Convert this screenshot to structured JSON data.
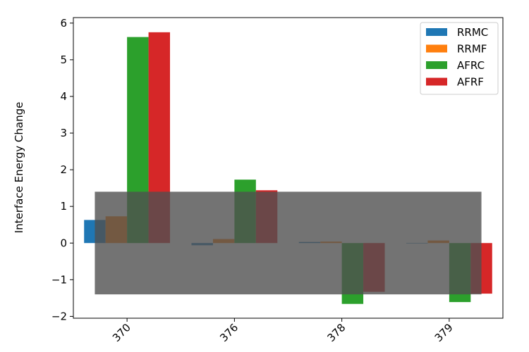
{
  "chart_data": {
    "type": "bar",
    "title": "",
    "xlabel": "",
    "ylabel": "Interface Energy Change",
    "categories": [
      "370",
      "376",
      "378",
      "379"
    ],
    "ylim": [
      -2.05,
      6.15
    ],
    "yticks": [
      -2,
      -1,
      0,
      1,
      2,
      3,
      4,
      5,
      6
    ],
    "ytick_labels": [
      "−2",
      "−1",
      "0",
      "1",
      "2",
      "3",
      "4",
      "5",
      "6"
    ],
    "grid": false,
    "legend_position": "top-right",
    "series": [
      {
        "name": "RRMC",
        "color": "#1f77b4",
        "values": [
          0.63,
          -0.06,
          0.03,
          0.0
        ]
      },
      {
        "name": "RRMF",
        "color": "#ff7f0e",
        "values": [
          0.73,
          0.11,
          0.04,
          0.07
        ]
      },
      {
        "name": "AFRC",
        "color": "#2ca02c",
        "values": [
          5.62,
          1.73,
          -1.66,
          -1.61
        ]
      },
      {
        "name": "AFRF",
        "color": "#d62728",
        "values": [
          5.75,
          1.44,
          -1.33,
          -1.38
        ]
      }
    ],
    "band": {
      "y0": -1.4,
      "y1": 1.4,
      "color": "#505050",
      "opacity": 0.8
    }
  }
}
